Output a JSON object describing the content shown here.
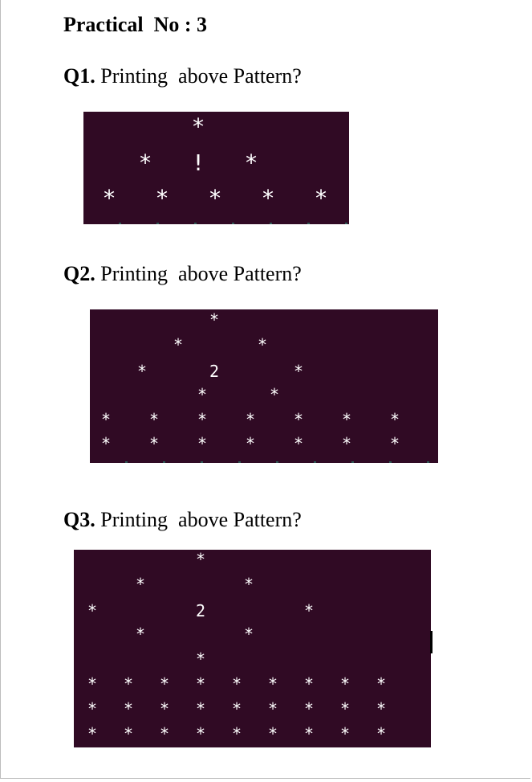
{
  "title": "Practical  No : 3",
  "questions": [
    {
      "num": "Q1.",
      "text": " Printing  above Pattern?"
    },
    {
      "num": "Q2.",
      "text": " Printing  above Pattern?"
    },
    {
      "num": "Q3.",
      "text": " Printing  above Pattern?"
    }
  ],
  "colors": {
    "terminal_bg": "#300a24",
    "terminal_fg": "#ffffff"
  },
  "patterns": {
    "q1": {
      "rows": [
        [
          "*"
        ],
        [
          "*",
          "!",
          "*"
        ],
        [
          "*",
          "*",
          "*",
          "*",
          "*"
        ]
      ]
    },
    "q2": {
      "rows": [
        [
          "*"
        ],
        [
          "*",
          "*"
        ],
        [
          "*",
          "2",
          "*"
        ],
        [
          "*",
          "*"
        ],
        [
          "*",
          "*",
          "*",
          "*",
          "*",
          "*",
          "*"
        ],
        [
          "*",
          "*",
          "*",
          "*",
          "*",
          "*",
          "*"
        ]
      ]
    },
    "q3": {
      "rows": [
        [
          "*"
        ],
        [
          "*",
          "*"
        ],
        [
          "*",
          "2",
          "*"
        ],
        [
          "*",
          "*"
        ],
        [
          "*"
        ],
        [
          "*",
          "*",
          "*",
          "*",
          "*",
          "*",
          "*",
          "*",
          "*"
        ],
        [
          "*",
          "*",
          "*",
          "*",
          "*",
          "*",
          "*",
          "*",
          "*"
        ],
        [
          "*",
          "*",
          "*",
          "*",
          "*",
          "*",
          "*",
          "*",
          "*"
        ]
      ]
    }
  }
}
